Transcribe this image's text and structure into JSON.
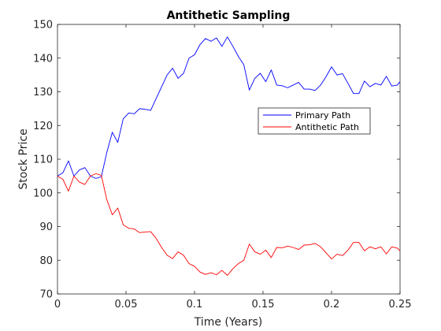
{
  "chart_data": {
    "type": "line",
    "title": "Antithetic Sampling",
    "xlabel": "Time (Years)",
    "ylabel": "Stock Price",
    "xlim": [
      0,
      0.25
    ],
    "ylim": [
      70,
      150
    ],
    "xticks": [
      0,
      0.05,
      0.1,
      0.15,
      0.2,
      0.25
    ],
    "xtick_labels": [
      "0",
      "0.05",
      "0.1",
      "0.15",
      "0.2",
      "0.25"
    ],
    "yticks": [
      70,
      80,
      90,
      100,
      110,
      120,
      130,
      140,
      150
    ],
    "ytick_labels": [
      "70",
      "80",
      "90",
      "100",
      "110",
      "120",
      "130",
      "140",
      "150"
    ],
    "grid": false,
    "legend_position": "right, upper-middle",
    "colors": {
      "primary": "#0000ff",
      "antithetic": "#ff0000",
      "axes": "#262626"
    },
    "x": [
      0,
      0.004,
      0.008,
      0.012,
      0.016,
      0.02,
      0.024,
      0.028,
      0.032,
      0.036,
      0.04,
      0.044,
      0.048,
      0.052,
      0.056,
      0.06,
      0.064,
      0.068,
      0.072,
      0.076,
      0.08,
      0.084,
      0.088,
      0.092,
      0.096,
      0.1,
      0.104,
      0.108,
      0.112,
      0.116,
      0.12,
      0.124,
      0.128,
      0.132,
      0.136,
      0.14,
      0.144,
      0.148,
      0.152,
      0.156,
      0.16,
      0.164,
      0.168,
      0.172,
      0.176,
      0.18,
      0.184,
      0.188,
      0.192,
      0.196,
      0.2,
      0.204,
      0.208,
      0.212,
      0.216,
      0.22,
      0.224,
      0.228,
      0.232,
      0.236,
      0.24,
      0.244,
      0.248,
      0.25
    ],
    "series": [
      {
        "name": "Primary Path",
        "color": "#0000ff",
        "values": [
          105,
          106,
          109.5,
          105,
          106.8,
          107.5,
          105,
          104.3,
          104.8,
          112,
          118,
          115,
          122,
          123.7,
          123.5,
          125,
          124.8,
          124.5,
          128,
          131.5,
          135,
          137,
          134,
          135.5,
          140,
          141,
          144,
          145.8,
          145,
          146,
          143.5,
          146.3,
          143.5,
          140.5,
          138,
          130.5,
          134,
          135.5,
          133,
          136.5,
          132,
          131.8,
          131.2,
          132,
          132.8,
          130.8,
          130.8,
          130.4,
          132,
          134.5,
          137.4,
          135,
          135.4,
          132.5,
          129.5,
          129.5,
          133.2,
          131.5,
          132.5,
          132,
          134.6,
          131.7,
          132,
          133
        ]
      },
      {
        "name": "Antithetic Path",
        "color": "#ff0000",
        "values": [
          105,
          104,
          100.5,
          105,
          103.2,
          102.5,
          105,
          105.7,
          105.2,
          98,
          93.5,
          95.5,
          90.5,
          89.5,
          89.3,
          88.2,
          88.4,
          88.5,
          86.5,
          83.8,
          81.5,
          80.5,
          82.5,
          81.5,
          79,
          78.2,
          76.5,
          75.8,
          76.3,
          75.7,
          77,
          75.5,
          77.5,
          79,
          80,
          84.8,
          82.5,
          81.8,
          83,
          80.8,
          83.8,
          83.7,
          84.2,
          83.8,
          83.2,
          84.5,
          84.6,
          85,
          84,
          82.2,
          80.4,
          81.8,
          81.4,
          83,
          85.3,
          85.3,
          82.8,
          84,
          83.4,
          84,
          81.9,
          84,
          83.6,
          82.8
        ]
      }
    ]
  }
}
